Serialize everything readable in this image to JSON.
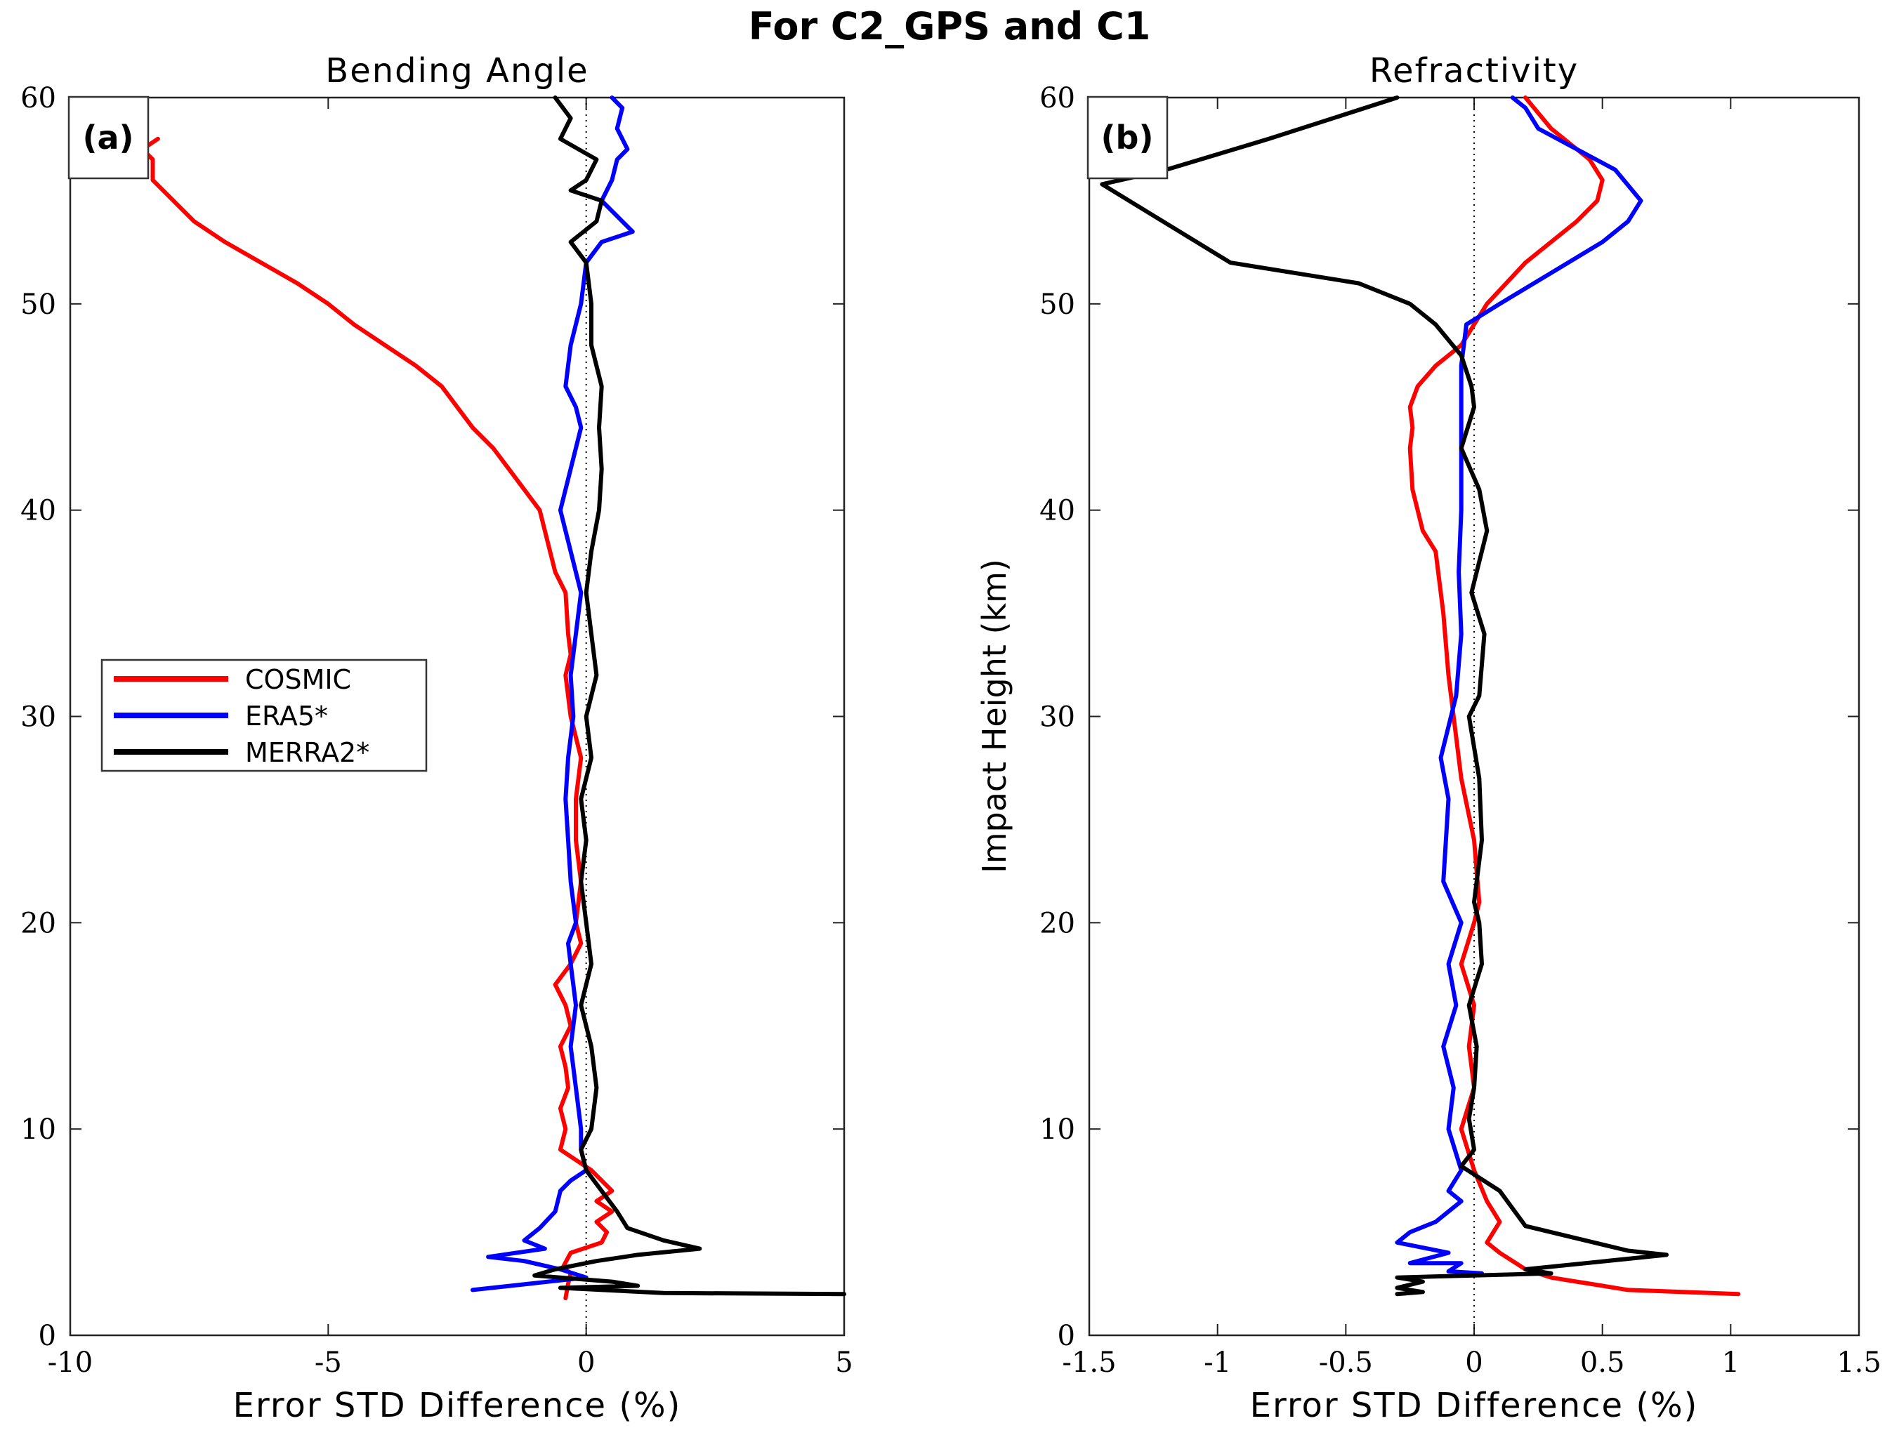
{
  "figure_title": "For C2_GPS and C1",
  "chart_data": [
    {
      "type": "line",
      "panel_label": "(a)",
      "title": "Bending Angle",
      "xlabel": "Error STD Difference (%)",
      "ylabel": "",
      "xlim": [
        -10,
        5
      ],
      "ylim": [
        0,
        60
      ],
      "xticks": [
        -10,
        -5,
        0,
        5
      ],
      "xtick_labels": [
        "-10",
        "-5",
        "0",
        "5"
      ],
      "yticks": [
        0,
        10,
        20,
        30,
        40,
        50,
        60
      ],
      "ytick_labels": [
        "0",
        "10",
        "20",
        "30",
        "40",
        "50",
        "60"
      ],
      "legend": {
        "position": "middle-left",
        "entries": [
          "COSMIC",
          "ERA5*",
          "MERRA2*"
        ]
      },
      "series": [
        {
          "name": "COSMIC",
          "color": "#ff0000",
          "x": [
            -0.4,
            -0.35,
            -0.3,
            -0.45,
            -0.3,
            0.3,
            0.4,
            0.2,
            0.5,
            0.2,
            0.5,
            0.1,
            -0.2,
            -0.5,
            -0.4,
            -0.5,
            -0.35,
            -0.4,
            -0.5,
            -0.3,
            -0.4,
            -0.6,
            -0.3,
            -0.1,
            -0.2,
            -0.1,
            -0.2,
            -0.2,
            -0.1,
            -0.3,
            -0.4,
            -0.3,
            -0.35,
            -0.4,
            -0.6,
            -0.7,
            -0.9,
            -1.2,
            -1.5,
            -1.8,
            -2.2,
            -2.5,
            -2.8,
            -3.3,
            -3.9,
            -4.5,
            -5.0,
            -5.6,
            -6.3,
            -7.0,
            -7.6,
            -8.0,
            -8.4,
            -8.4,
            -8.6,
            -8.3
          ],
          "y": [
            1.8,
            2.5,
            3.0,
            3.3,
            4.0,
            4.5,
            5.0,
            5.5,
            6.0,
            6.5,
            7.0,
            8.0,
            8.5,
            9.0,
            10.0,
            11.0,
            12.0,
            13.0,
            14.0,
            15.0,
            16.0,
            17.0,
            18.0,
            19.0,
            20.0,
            22.0,
            24.0,
            26.0,
            28.0,
            30.0,
            32.0,
            33.0,
            34.0,
            36.0,
            37.0,
            38.0,
            40.0,
            41.0,
            42.0,
            43.0,
            44.0,
            45.0,
            46.0,
            47.0,
            48.0,
            49.0,
            50.0,
            51.0,
            52.0,
            53.0,
            54.0,
            55.0,
            56.0,
            57.0,
            57.5,
            58.0
          ]
        },
        {
          "name": "ERA5*",
          "color": "#0000ff",
          "x": [
            -2.2,
            0.0,
            -0.5,
            -1.2,
            -1.9,
            -0.8,
            -1.2,
            -0.9,
            -0.6,
            -0.5,
            -0.3,
            0.0,
            -0.1,
            -0.1,
            -0.2,
            -0.3,
            -0.2,
            -0.3,
            -0.35,
            -0.2,
            -0.3,
            -0.35,
            -0.4,
            -0.35,
            -0.25,
            -0.3,
            -0.2,
            -0.1,
            -0.3,
            -0.5,
            -0.3,
            -0.1,
            -0.2,
            -0.4,
            -0.3,
            -0.1,
            0.0,
            0.3,
            0.9,
            0.3,
            0.5,
            0.6,
            0.8,
            0.6,
            0.7,
            0.5
          ],
          "y": [
            2.2,
            2.8,
            3.2,
            3.6,
            3.8,
            4.2,
            4.6,
            5.2,
            6.0,
            7.0,
            7.5,
            8.0,
            9.0,
            10.0,
            12.0,
            14.0,
            16.0,
            18.0,
            19.0,
            20.0,
            22.0,
            24.0,
            26.0,
            28.0,
            30.0,
            32.0,
            34.0,
            36.0,
            38.0,
            40.0,
            42.0,
            44.0,
            45.0,
            46.0,
            48.0,
            50.0,
            52.0,
            53.0,
            53.5,
            55.0,
            56.0,
            57.0,
            57.5,
            58.5,
            59.5,
            60.0
          ]
        },
        {
          "name": "MERRA2*",
          "color": "#000000",
          "x": [
            5.0,
            1.5,
            -0.5,
            1.0,
            0.5,
            -1.0,
            -0.6,
            0.2,
            1.0,
            2.2,
            1.5,
            0.8,
            0.6,
            0.3,
            0.0,
            -0.1,
            0.1,
            0.2,
            0.1,
            -0.1,
            0.1,
            0.0,
            -0.1,
            0.0,
            -0.1,
            0.1,
            0.0,
            0.2,
            0.1,
            0.0,
            0.1,
            0.25,
            0.3,
            0.25,
            0.3,
            0.1,
            0.1,
            0.0,
            -0.3,
            0.2,
            0.3,
            -0.3,
            0.0,
            0.2,
            -0.5,
            -0.3,
            -0.6
          ],
          "y": [
            2.0,
            2.05,
            2.3,
            2.4,
            2.6,
            2.9,
            3.2,
            3.6,
            3.9,
            4.2,
            4.6,
            5.2,
            6.0,
            7.0,
            8.0,
            9.0,
            10.0,
            12.0,
            14.0,
            16.0,
            18.0,
            20.0,
            22.0,
            24.0,
            26.0,
            28.0,
            30.0,
            32.0,
            34.0,
            36.0,
            38.0,
            40.0,
            42.0,
            44.0,
            46.0,
            48.0,
            50.0,
            52.0,
            53.0,
            54.0,
            55.0,
            55.5,
            56.0,
            57.0,
            58.0,
            59.0,
            60.0
          ]
        }
      ]
    },
    {
      "type": "line",
      "panel_label": "(b)",
      "title": "Refractivity",
      "xlabel": "Error STD Difference (%)",
      "ylabel": "Impact Height (km)",
      "xlim": [
        -1.5,
        1.5
      ],
      "ylim": [
        0,
        60
      ],
      "xticks": [
        -1.5,
        -1,
        -0.5,
        0,
        0.5,
        1,
        1.5
      ],
      "xtick_labels": [
        "-1.5",
        "-1",
        "-0.5",
        "0",
        "0.5",
        "1",
        "1.5"
      ],
      "yticks": [
        0,
        10,
        20,
        30,
        40,
        50,
        60
      ],
      "ytick_labels": [
        "0",
        "10",
        "20",
        "30",
        "40",
        "50",
        "60"
      ],
      "series": [
        {
          "name": "COSMIC",
          "color": "#ff0000",
          "x": [
            1.03,
            0.6,
            0.45,
            0.4,
            0.3,
            0.2,
            0.1,
            0.05,
            0.1,
            0.05,
            0.0,
            -0.05,
            0.0,
            -0.02,
            0.0,
            -0.05,
            0.0,
            0.02,
            0.0,
            -0.05,
            -0.08,
            -0.1,
            -0.12,
            -0.15,
            -0.2,
            -0.24,
            -0.25,
            -0.24,
            -0.25,
            -0.22,
            -0.15,
            -0.05,
            0.05,
            0.2,
            0.3,
            0.4,
            0.48,
            0.5,
            0.45,
            0.3,
            0.2
          ],
          "y": [
            2.0,
            2.2,
            2.5,
            2.6,
            2.8,
            3.2,
            4.0,
            4.5,
            5.5,
            6.5,
            8.0,
            10.0,
            12.0,
            14.0,
            16.0,
            18.0,
            20.0,
            21.0,
            24.0,
            27.0,
            30.0,
            32.0,
            35.0,
            38.0,
            39.0,
            41.0,
            43.0,
            44.0,
            45.0,
            46.0,
            47.0,
            48.0,
            50.0,
            52.0,
            53.0,
            54.0,
            55.0,
            56.0,
            57.0,
            58.5,
            60.0
          ]
        },
        {
          "name": "ERA5*",
          "color": "#0000ff",
          "x": [
            0.03,
            -0.1,
            -0.05,
            -0.25,
            -0.1,
            -0.3,
            -0.25,
            -0.15,
            -0.05,
            -0.1,
            -0.05,
            -0.1,
            -0.08,
            -0.12,
            -0.07,
            -0.1,
            -0.05,
            -0.12,
            -0.1,
            -0.13,
            -0.07,
            -0.05,
            -0.06,
            -0.05,
            -0.05,
            -0.05,
            -0.03,
            0.1,
            0.3,
            0.5,
            0.6,
            0.65,
            0.55,
            0.4,
            0.25,
            0.2,
            0.15
          ],
          "y": [
            3.0,
            3.1,
            3.5,
            3.5,
            4.0,
            4.5,
            5.0,
            5.5,
            6.5,
            7.0,
            8.0,
            10.0,
            12.0,
            14.0,
            16.0,
            18.0,
            20.0,
            22.0,
            26.0,
            28.0,
            31.0,
            34.0,
            37.0,
            40.0,
            44.0,
            47.0,
            49.0,
            50.0,
            51.5,
            53.0,
            54.0,
            55.0,
            56.5,
            57.5,
            58.5,
            59.5,
            60.0
          ]
        },
        {
          "name": "MERRA2*",
          "color": "#000000",
          "x": [
            -0.3,
            -0.2,
            -0.3,
            -0.2,
            -0.3,
            0.3,
            0.2,
            0.75,
            0.6,
            0.2,
            0.1,
            0.0,
            -0.05,
            0.0,
            -0.02,
            0.0,
            0.01,
            -0.02,
            0.03,
            0.02,
            0.0,
            0.03,
            0.02,
            -0.02,
            0.02,
            0.04,
            -0.01,
            0.05,
            0.02,
            -0.05,
            0.0,
            -0.01,
            -0.05,
            -0.15,
            -0.25,
            -0.45,
            -0.7,
            -0.95,
            -0.95,
            -1.45,
            -1.2,
            -0.8,
            -0.3
          ],
          "y": [
            2.0,
            2.1,
            2.3,
            2.6,
            2.8,
            3.0,
            3.2,
            3.9,
            4.1,
            5.3,
            7.0,
            7.8,
            8.2,
            9.0,
            10.5,
            12.0,
            14.0,
            16.0,
            18.0,
            20.0,
            21.0,
            24.0,
            27.0,
            30.0,
            31.0,
            34.0,
            36.0,
            39.0,
            41.0,
            43.0,
            45.0,
            46.0,
            47.5,
            49.0,
            50.0,
            51.0,
            51.5,
            52.0,
            52.0,
            55.8,
            56.5,
            58.0,
            60.0
          ]
        }
      ]
    }
  ]
}
